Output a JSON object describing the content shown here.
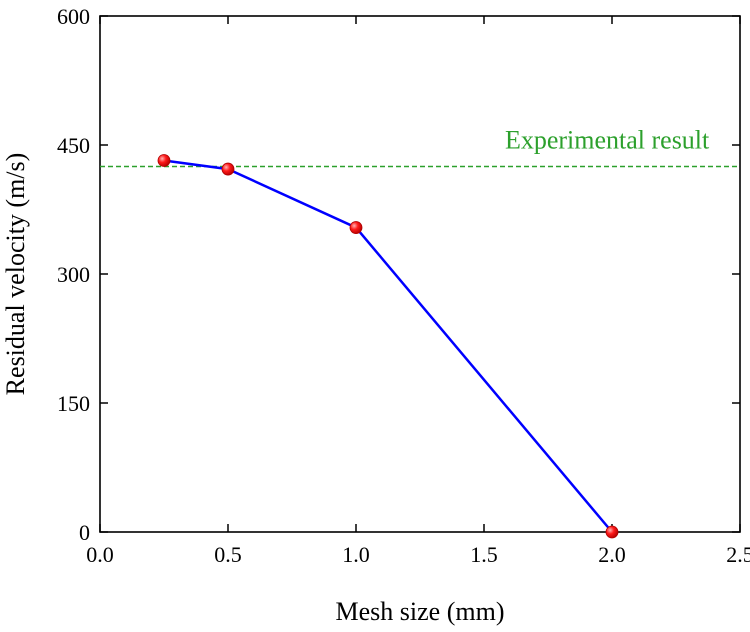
{
  "chart_data": {
    "type": "line",
    "xlabel": "Mesh size (mm)",
    "ylabel": "Residual velocity (m/s)",
    "xlim": [
      0.0,
      2.5
    ],
    "ylim": [
      0,
      600
    ],
    "xticks": [
      0.0,
      0.5,
      1.0,
      1.5,
      2.0,
      2.5
    ],
    "xtick_labels": [
      "0.0",
      "0.5",
      "1.0",
      "1.5",
      "2.0",
      "2.5"
    ],
    "yticks": [
      0,
      150,
      300,
      450,
      600
    ],
    "ytick_labels": [
      "0",
      "150",
      "300",
      "450",
      "600"
    ],
    "grid": false,
    "series": [
      {
        "x": [
          0.25,
          0.5,
          1.0,
          2.0
        ],
        "y": [
          432,
          422,
          354,
          0
        ],
        "line_color": "#0000ff",
        "marker_color": "#ff0000"
      }
    ],
    "reference_line": {
      "y": 425,
      "label": "Experimental result",
      "color": "#2ca02c",
      "style": "dashed"
    }
  }
}
